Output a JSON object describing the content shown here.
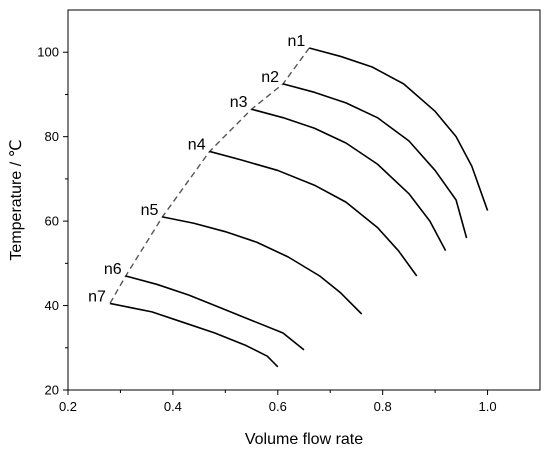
{
  "chart_data": {
    "type": "line",
    "xlabel": "Volume flow rate",
    "ylabel": "Temperature / ℃",
    "xlim": [
      0.2,
      1.1
    ],
    "ylim": [
      20,
      110
    ],
    "xticks": [
      0.2,
      0.4,
      0.6,
      0.8,
      1.0
    ],
    "yticks": [
      20,
      40,
      60,
      80,
      100
    ],
    "xtick_labels": [
      "0.2",
      "0.4",
      "0.6",
      "0.8",
      "1.0"
    ],
    "ytick_labels": [
      "20",
      "40",
      "60",
      "80",
      "100"
    ],
    "grid": false,
    "series": [
      {
        "name": "n1",
        "x": [
          0.66,
          0.72,
          0.78,
          0.84,
          0.9,
          0.94,
          0.97,
          1.0
        ],
        "y": [
          101,
          99,
          96.5,
          92.5,
          86,
          80,
          73,
          62.5
        ]
      },
      {
        "name": "n2",
        "x": [
          0.61,
          0.67,
          0.73,
          0.79,
          0.85,
          0.9,
          0.94,
          0.96
        ],
        "y": [
          92.5,
          90.5,
          88,
          84.5,
          79,
          72,
          65,
          56
        ]
      },
      {
        "name": "n3",
        "x": [
          0.55,
          0.61,
          0.67,
          0.73,
          0.79,
          0.85,
          0.89,
          0.92
        ],
        "y": [
          86.5,
          84.5,
          82,
          78.5,
          73.5,
          66.5,
          60,
          53
        ]
      },
      {
        "name": "n4",
        "x": [
          0.47,
          0.53,
          0.6,
          0.67,
          0.73,
          0.79,
          0.83,
          0.865
        ],
        "y": [
          76.5,
          74.5,
          72,
          68.5,
          64.5,
          58.5,
          53,
          47
        ]
      },
      {
        "name": "n5",
        "x": [
          0.38,
          0.44,
          0.5,
          0.56,
          0.62,
          0.68,
          0.72,
          0.76
        ],
        "y": [
          61,
          59.5,
          57.5,
          55,
          51.5,
          47,
          43,
          38
        ]
      },
      {
        "name": "n6",
        "x": [
          0.31,
          0.37,
          0.43,
          0.49,
          0.55,
          0.61,
          0.65
        ],
        "y": [
          47,
          45,
          42.5,
          39.5,
          36.5,
          33.5,
          29.5
        ]
      },
      {
        "name": "n7",
        "x": [
          0.28,
          0.36,
          0.42,
          0.48,
          0.54,
          0.58,
          0.6
        ],
        "y": [
          40.5,
          38.5,
          36,
          33.5,
          30.5,
          28,
          25.5
        ]
      }
    ],
    "envelope": {
      "x": [
        0.66,
        0.61,
        0.55,
        0.47,
        0.38,
        0.31,
        0.28
      ],
      "y": [
        101,
        92.5,
        86.5,
        76.5,
        61,
        47,
        40.5
      ],
      "style": "dashed"
    },
    "labels": [
      "n1",
      "n2",
      "n3",
      "n4",
      "n5",
      "n6",
      "n7"
    ]
  }
}
